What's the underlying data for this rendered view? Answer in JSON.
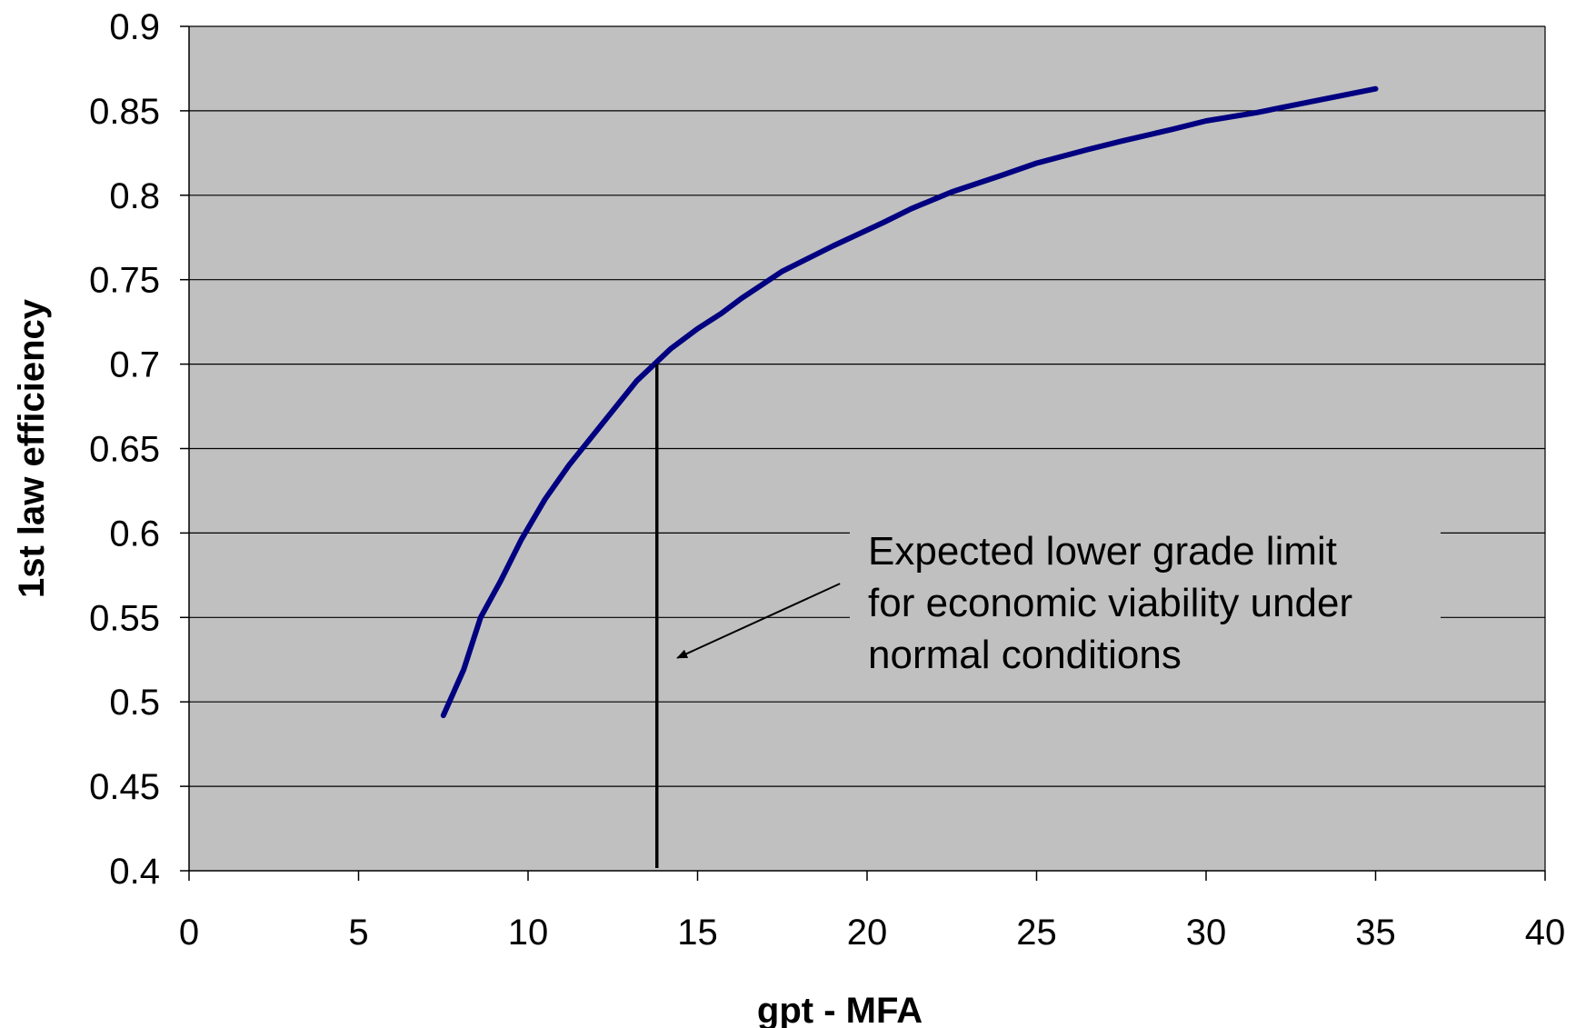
{
  "chart_data": {
    "type": "line",
    "title": "",
    "xlabel": "gpt - MFA",
    "ylabel": "1st law efficiency",
    "xlim": [
      0,
      40
    ],
    "ylim": [
      0.4,
      0.9
    ],
    "x_ticks": [
      0,
      5,
      10,
      15,
      20,
      25,
      30,
      35,
      40
    ],
    "y_ticks": [
      0.4,
      0.45,
      0.5,
      0.55,
      0.6,
      0.65,
      0.7,
      0.75,
      0.8,
      0.85,
      0.9
    ],
    "x_tick_labels": [
      "0",
      "5",
      "10",
      "15",
      "20",
      "25",
      "30",
      "35",
      "40"
    ],
    "y_tick_labels": [
      "0.4",
      "0.45",
      "0.5",
      "0.55",
      "0.6",
      "0.65",
      "0.7",
      "0.75",
      "0.8",
      "0.85",
      "0.9"
    ],
    "grid": "horizontal",
    "legend": "none",
    "series": [
      {
        "color": "#000080",
        "x": [
          7.5,
          8.1,
          8.6,
          9.2,
          9.8,
          10.5,
          11.2,
          12.2,
          13.2,
          14.2,
          15.0,
          15.7,
          16.3,
          17.5,
          19.0,
          20.5,
          21.3,
          22.5,
          24.0,
          25.0,
          26.5,
          27.5,
          29.0,
          30.0,
          31.5,
          33.0,
          35.0
        ],
        "y": [
          0.492,
          0.519,
          0.55,
          0.572,
          0.596,
          0.62,
          0.64,
          0.665,
          0.69,
          0.709,
          0.721,
          0.73,
          0.739,
          0.755,
          0.77,
          0.784,
          0.792,
          0.802,
          0.812,
          0.819,
          0.827,
          0.832,
          0.839,
          0.844,
          0.849,
          0.855,
          0.863
        ]
      }
    ],
    "vertical_marker": {
      "x": 13.8,
      "y_top": 0.7,
      "color": "#000000"
    },
    "annotation": {
      "lines": [
        "Expected lower grade limit",
        "for economic viability under",
        "normal conditions"
      ],
      "arrow_from": [
        19.2,
        0.57
      ],
      "arrow_to": [
        14.4,
        0.526
      ]
    },
    "colors": {
      "plot_background": "#c0c0c0",
      "gridline": "#000000",
      "curve": "#000080",
      "axis": "#000000"
    }
  }
}
